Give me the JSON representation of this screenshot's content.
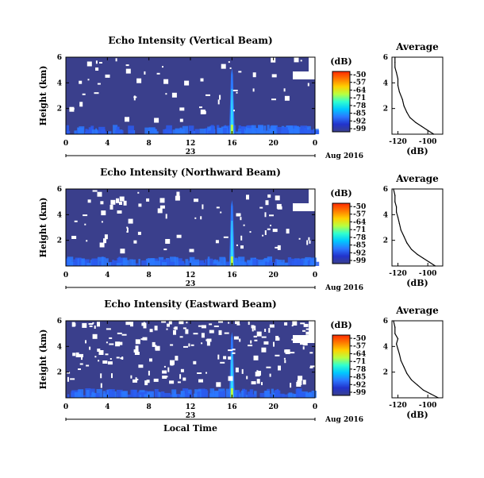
{
  "chart_data": {
    "type": "heatmap",
    "xlabel": "Local Time",
    "x_ticks": [
      "0",
      "4",
      "8",
      "12",
      "16",
      "20",
      "0"
    ],
    "xlim": [
      0,
      24
    ],
    "date_day": "23",
    "date_month": "Aug 2016",
    "ylabel": "Height (km)",
    "y_ticks": [
      "2",
      "4",
      "6"
    ],
    "ylim": [
      0,
      6
    ],
    "colorbar": {
      "unit": "(dB)",
      "ticks": [
        "-50",
        "-57",
        "-64",
        "-71",
        "-78",
        "-85",
        "-92",
        "-99"
      ],
      "range": [
        -99,
        -50
      ],
      "colors": [
        "#ff2a00",
        "#ff7a00",
        "#ffd000",
        "#b8ff40",
        "#30ffd0",
        "#00c8ff",
        "#2c78ff",
        "#2233cc",
        "#3a3f8c"
      ]
    },
    "panels": [
      {
        "title": "Echo Intensity (Vertical Beam)",
        "profile": {
          "title": "Average",
          "xlabel": "(dB)",
          "x_ticks": [
            "-120",
            "-100"
          ],
          "xlim": [
            -124,
            -90
          ],
          "ylim": [
            0,
            6
          ],
          "y_ticks": [
            "2",
            "4",
            "6"
          ],
          "points": [
            [
              -96,
              0
            ],
            [
              -100,
              0.3
            ],
            [
              -104,
              0.6
            ],
            [
              -108,
              0.9
            ],
            [
              -112,
              1.3
            ],
            [
              -114,
              1.7
            ],
            [
              -116,
              2.2
            ],
            [
              -117,
              2.7
            ],
            [
              -119,
              3.3
            ],
            [
              -120,
              3.8
            ],
            [
              -120,
              4.3
            ],
            [
              -121,
              4.8
            ],
            [
              -122,
              5.2
            ],
            [
              -122,
              5.6
            ],
            [
              -122,
              6.0
            ]
          ]
        }
      },
      {
        "title": "Echo Intensity (Northward Beam)",
        "profile": {
          "title": "Average",
          "xlabel": "(dB)",
          "x_ticks": [
            "-120",
            "-100"
          ],
          "xlim": [
            -124,
            -90
          ],
          "ylim": [
            0,
            6
          ],
          "y_ticks": [
            "2",
            "4",
            "6"
          ],
          "points": [
            [
              -95,
              0
            ],
            [
              -99,
              0.3
            ],
            [
              -103,
              0.6
            ],
            [
              -107,
              0.9
            ],
            [
              -111,
              1.3
            ],
            [
              -114,
              1.8
            ],
            [
              -116,
              2.3
            ],
            [
              -118,
              2.8
            ],
            [
              -119,
              3.3
            ],
            [
              -120,
              3.8
            ],
            [
              -121,
              4.2
            ],
            [
              -121,
              4.6
            ],
            [
              -122,
              5.0
            ],
            [
              -122,
              5.5
            ],
            [
              -123,
              6.0
            ]
          ]
        }
      },
      {
        "title": "Echo Intensity (Eastward Beam)",
        "profile": {
          "title": "Average",
          "xlabel": "(dB)",
          "x_ticks": [
            "-120",
            "-100"
          ],
          "xlim": [
            -124,
            -90
          ],
          "ylim": [
            0,
            6
          ],
          "y_ticks": [
            "2",
            "4",
            "6"
          ],
          "points": [
            [
              -93,
              0
            ],
            [
              -98,
              0.3
            ],
            [
              -103,
              0.6
            ],
            [
              -107,
              1.0
            ],
            [
              -111,
              1.4
            ],
            [
              -114,
              1.9
            ],
            [
              -116,
              2.4
            ],
            [
              -118,
              2.9
            ],
            [
              -119,
              3.4
            ],
            [
              -120,
              3.8
            ],
            [
              -121,
              4.2
            ],
            [
              -120,
              4.6
            ],
            [
              -122,
              5.0
            ],
            [
              -122,
              5.5
            ],
            [
              -123,
              6.0
            ]
          ]
        }
      }
    ]
  }
}
